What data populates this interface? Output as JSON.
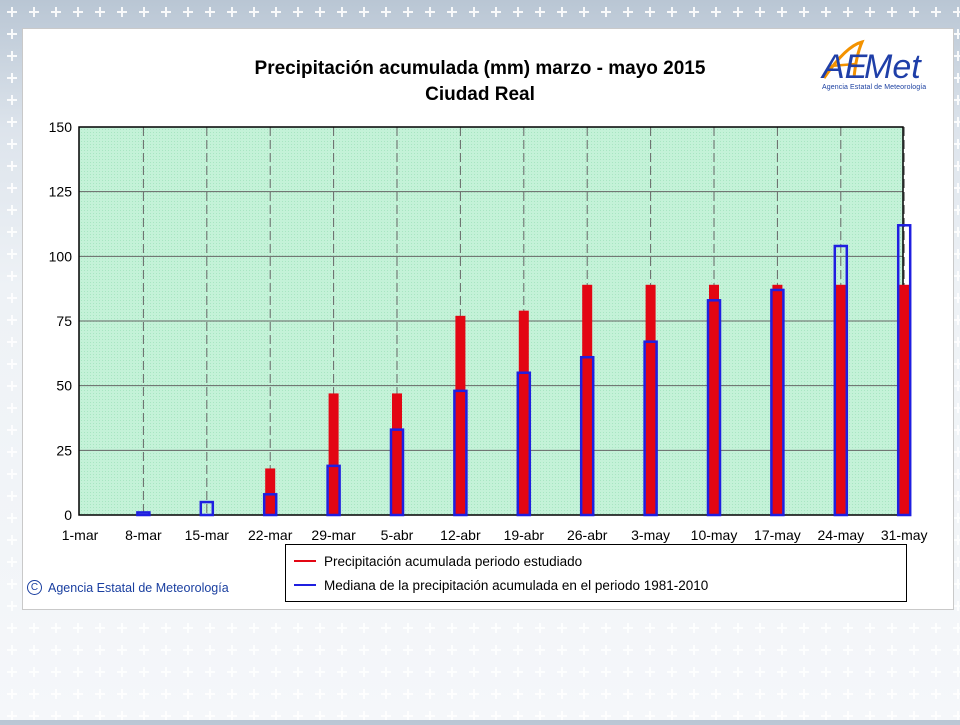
{
  "title_line1": "Precipitación acumulada (mm) marzo - mayo 2015",
  "title_line2": "Ciudad Real",
  "logo": {
    "text": "AEMet",
    "subtitle": "Agencia Estatal de Meteorología"
  },
  "copyright": "Agencia Estatal de Meteorología",
  "colors": {
    "studied": "#e30613",
    "median": "#1f1fe0",
    "plot_bg": "#c4f2d8",
    "grid": "#7a7a7a"
  },
  "chart_data": {
    "type": "bar",
    "title": "Precipitación acumulada (mm) marzo - mayo 2015",
    "subtitle": "Ciudad Real",
    "categories": [
      "1-mar",
      "8-mar",
      "15-mar",
      "22-mar",
      "29-mar",
      "5-abr",
      "12-abr",
      "19-abr",
      "26-abr",
      "3-may",
      "10-may",
      "17-may",
      "24-may",
      "31-may"
    ],
    "ylim": [
      0,
      150
    ],
    "yticks": [
      0,
      25,
      50,
      75,
      100,
      125,
      150
    ],
    "grid": true,
    "legend_position": "bottom",
    "series": [
      {
        "name": "Precipitación acumulada periodo estudiado",
        "color": "#e30613",
        "style": "filled",
        "values": [
          0,
          0,
          0,
          18,
          47,
          47,
          77,
          79,
          89,
          89,
          89,
          89,
          89,
          89
        ]
      },
      {
        "name": "Mediana de la precipitación acumulada en el periodo 1981-2010",
        "color": "#1f1fe0",
        "style": "outline",
        "values": [
          0,
          1,
          5,
          8,
          19,
          33,
          48,
          55,
          61,
          67,
          83,
          87,
          104,
          112
        ]
      }
    ]
  }
}
